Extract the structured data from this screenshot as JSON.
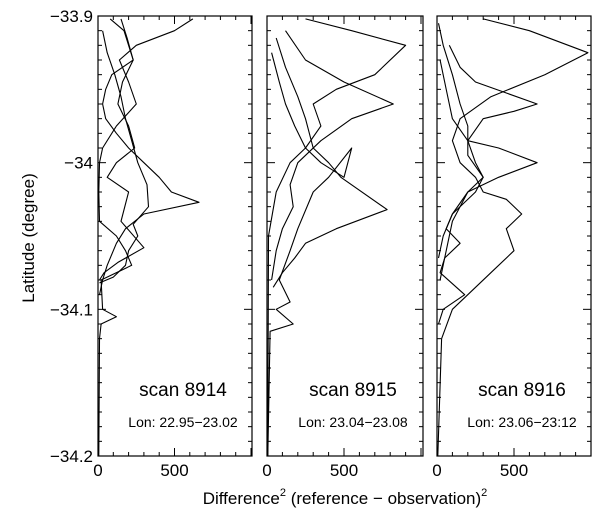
{
  "chart_data": {
    "type": "line",
    "ylabel": "Latitude (degree)",
    "xlabel_parts": {
      "pre": "Difference",
      "sup1": "2",
      "mid": " (reference − observation)",
      "sup2": "2"
    },
    "ylim": [
      -34.2,
      -33.9
    ],
    "yticks": [
      "-33.9",
      "-34",
      "-34.1",
      "-34.2"
    ],
    "xlim": [
      0,
      1000
    ],
    "xticks": [
      "0",
      "500"
    ],
    "panels": [
      {
        "title": "scan 8914",
        "lon": "Lon: 22.95−23.02",
        "series": [
          {
            "points": [
              [
                80,
                -33.902
              ],
              [
                170,
                -33.91
              ],
              [
                230,
                -33.93
              ],
              [
                90,
                -33.94
              ],
              [
                50,
                -33.95
              ],
              [
                30,
                -33.96
              ],
              [
                50,
                -33.97
              ],
              [
                120,
                -33.98
              ],
              [
                200,
                -33.99
              ],
              [
                300,
                -34.0
              ],
              [
                400,
                -34.01
              ],
              [
                480,
                -34.02
              ],
              [
                660,
                -34.027
              ],
              [
                300,
                -34.035
              ],
              [
                180,
                -34.045
              ],
              [
                120,
                -34.055
              ],
              [
                60,
                -34.07
              ],
              [
                30,
                -34.08
              ],
              [
                10,
                -34.09
              ]
            ]
          },
          {
            "points": [
              [
                150,
                -33.902
              ],
              [
                190,
                -33.915
              ],
              [
                230,
                -33.93
              ],
              [
                160,
                -33.945
              ],
              [
                130,
                -33.96
              ],
              [
                200,
                -33.975
              ],
              [
                240,
                -33.99
              ],
              [
                120,
                -34.0
              ],
              [
                60,
                -34.01
              ],
              [
                200,
                -34.02
              ],
              [
                150,
                -34.04
              ],
              [
                300,
                -34.058
              ],
              [
                130,
                -34.068
              ],
              [
                40,
                -34.075
              ],
              [
                10,
                -34.08
              ]
            ]
          },
          {
            "points": [
              [
                30,
                -33.91
              ],
              [
                60,
                -33.925
              ],
              [
                110,
                -33.94
              ],
              [
                150,
                -33.955
              ],
              [
                180,
                -33.97
              ],
              [
                220,
                -33.985
              ],
              [
                260,
                -34.0
              ],
              [
                320,
                -34.015
              ],
              [
                330,
                -34.03
              ],
              [
                230,
                -34.042
              ],
              [
                260,
                -34.05
              ],
              [
                200,
                -34.06
              ],
              [
                180,
                -34.07
              ],
              [
                100,
                -34.078
              ],
              [
                10,
                -34.082
              ]
            ]
          },
          {
            "points": [
              [
                620,
                -33.902
              ],
              [
                500,
                -33.91
              ],
              [
                250,
                -33.92
              ],
              [
                140,
                -33.93
              ],
              [
                200,
                -33.945
              ],
              [
                250,
                -33.96
              ],
              [
                120,
                -33.975
              ],
              [
                30,
                -33.99
              ],
              [
                10,
                -34.0
              ],
              [
                5,
                -34.02
              ],
              [
                10,
                -34.04
              ],
              [
                120,
                -34.05
              ],
              [
                180,
                -34.06
              ],
              [
                220,
                -34.07
              ],
              [
                20,
                -34.08
              ],
              [
                30,
                -34.1
              ],
              [
                120,
                -34.105
              ],
              [
                20,
                -34.11
              ],
              [
                10,
                -34.12
              ],
              [
                5,
                -34.2
              ]
            ]
          }
        ]
      },
      {
        "title": "scan 8915",
        "lon": "Lon: 23.04−23.08",
        "series": [
          {
            "points": [
              [
                250,
                -33.902
              ],
              [
                550,
                -33.91
              ],
              [
                900,
                -33.92
              ],
              [
                700,
                -33.94
              ],
              [
                450,
                -33.95
              ],
              [
                300,
                -33.96
              ],
              [
                350,
                -33.975
              ],
              [
                250,
                -33.99
              ],
              [
                150,
                -34.0
              ],
              [
                60,
                -34.02
              ],
              [
                10,
                -34.05
              ],
              [
                5,
                -34.2
              ]
            ]
          },
          {
            "points": [
              [
                120,
                -33.91
              ],
              [
                250,
                -33.93
              ],
              [
                500,
                -33.945
              ],
              [
                820,
                -33.96
              ],
              [
                550,
                -33.97
              ],
              [
                350,
                -33.985
              ],
              [
                200,
                -34.0
              ],
              [
                150,
                -34.015
              ],
              [
                170,
                -34.03
              ],
              [
                100,
                -34.045
              ],
              [
                60,
                -34.06
              ],
              [
                30,
                -34.08
              ]
            ]
          },
          {
            "points": [
              [
                60,
                -33.915
              ],
              [
                120,
                -33.935
              ],
              [
                200,
                -33.955
              ],
              [
                250,
                -33.97
              ],
              [
                300,
                -33.99
              ],
              [
                400,
                -34.0
              ],
              [
                480,
                -34.01
              ],
              [
                780,
                -34.032
              ],
              [
                450,
                -34.045
              ],
              [
                250,
                -34.055
              ],
              [
                180,
                -34.065
              ],
              [
                100,
                -34.075
              ],
              [
                40,
                -34.085
              ]
            ]
          },
          {
            "points": [
              [
                30,
                -33.925
              ],
              [
                80,
                -33.945
              ],
              [
                120,
                -33.96
              ],
              [
                180,
                -33.975
              ],
              [
                250,
                -33.99
              ],
              [
                350,
                -34.0
              ],
              [
                500,
                -34.01
              ],
              [
                550,
                -33.99
              ],
              [
                400,
                -34.01
              ],
              [
                300,
                -34.02
              ],
              [
                200,
                -34.045
              ],
              [
                150,
                -34.06
              ],
              [
                80,
                -34.08
              ],
              [
                150,
                -34.095
              ],
              [
                60,
                -34.1
              ],
              [
                170,
                -34.11
              ],
              [
                20,
                -34.115
              ],
              [
                5,
                -34.2
              ]
            ]
          }
        ]
      },
      {
        "title": "scan 8916",
        "lon": "Lon: 23.06−23:12",
        "series": [
          {
            "points": [
              [
                300,
                -33.902
              ],
              [
                600,
                -33.91
              ],
              [
                980,
                -33.925
              ],
              [
                700,
                -33.94
              ],
              [
                350,
                -33.955
              ],
              [
                150,
                -33.97
              ],
              [
                100,
                -33.985
              ],
              [
                150,
                -34.0
              ],
              [
                250,
                -34.01
              ],
              [
                300,
                -34.02
              ],
              [
                450,
                -34.025
              ],
              [
                550,
                -34.035
              ],
              [
                450,
                -34.045
              ],
              [
                500,
                -34.06
              ],
              [
                350,
                -34.075
              ],
              [
                200,
                -34.09
              ],
              [
                100,
                -34.1
              ],
              [
                30,
                -34.12
              ],
              [
                5,
                -34.2
              ]
            ]
          },
          {
            "points": [
              [
                80,
                -33.92
              ],
              [
                150,
                -33.935
              ],
              [
                250,
                -33.945
              ],
              [
                650,
                -33.96
              ],
              [
                500,
                -33.965
              ],
              [
                300,
                -33.97
              ],
              [
                200,
                -33.985
              ],
              [
                400,
                -33.99
              ],
              [
                650,
                -34.0
              ],
              [
                400,
                -34.01
              ],
              [
                200,
                -34.02
              ],
              [
                100,
                -34.04
              ],
              [
                60,
                -34.06
              ],
              [
                20,
                -34.08
              ]
            ]
          },
          {
            "points": [
              [
                20,
                -33.93
              ],
              [
                60,
                -33.95
              ],
              [
                100,
                -33.97
              ],
              [
                200,
                -33.985
              ],
              [
                250,
                -34.0
              ],
              [
                300,
                -34.01
              ],
              [
                250,
                -34.02
              ],
              [
                100,
                -34.035
              ],
              [
                40,
                -34.05
              ],
              [
                10,
                -34.065
              ]
            ]
          },
          {
            "points": [
              [
                10,
                -33.905
              ],
              [
                40,
                -33.92
              ],
              [
                100,
                -33.94
              ],
              [
                150,
                -33.96
              ],
              [
                200,
                -33.975
              ],
              [
                200,
                -33.995
              ],
              [
                300,
                -34.01
              ],
              [
                200,
                -34.02
              ],
              [
                100,
                -34.035
              ],
              [
                60,
                -34.045
              ],
              [
                150,
                -34.055
              ],
              [
                50,
                -34.065
              ],
              [
                20,
                -34.075
              ],
              [
                180,
                -34.09
              ],
              [
                40,
                -34.1
              ],
              [
                10,
                -34.11
              ]
            ]
          }
        ]
      }
    ]
  }
}
